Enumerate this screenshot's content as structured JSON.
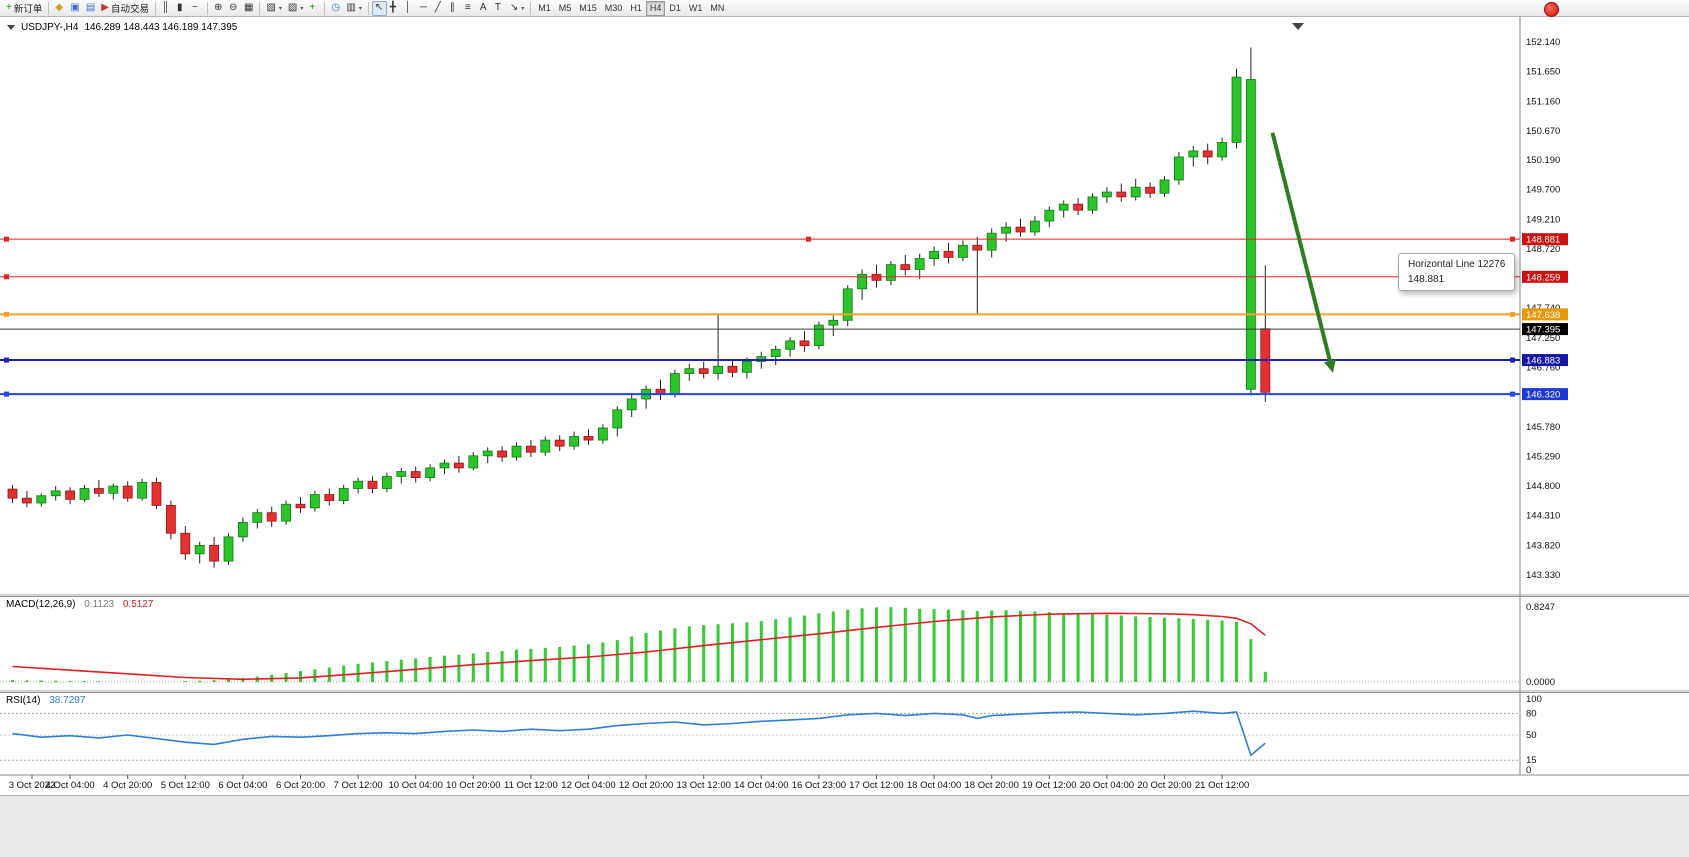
{
  "toolbar": {
    "dropdown_glyph": "▾",
    "groups": [
      [
        {
          "name": "new-order-button",
          "icon": "new-order-icon",
          "glyph": "+",
          "color": "#119911",
          "label": "新订单"
        }
      ],
      [
        {
          "name": "expert-advisors-icon",
          "glyph": "◆",
          "color": "#d4a017"
        },
        {
          "name": "profiles-icon",
          "glyph": "▣",
          "color": "#3b6fd4"
        },
        {
          "name": "data-window-icon",
          "glyph": "▤",
          "color": "#3b6fd4"
        },
        {
          "name": "autotrading-button",
          "icon": "autotrading-icon",
          "glyph": "▶",
          "color": "#cc3333",
          "label": "自动交易"
        }
      ],
      [
        {
          "name": "bar-chart-icon",
          "glyph": "║"
        },
        {
          "name": "candlestick-chart-icon",
          "glyph": "▮"
        },
        {
          "name": "line-chart-icon",
          "glyph": "~"
        }
      ],
      [
        {
          "name": "zoom-in-icon",
          "glyph": "⊕"
        },
        {
          "name": "zoom-out-icon",
          "glyph": "⊖"
        },
        {
          "name": "tile-windows-icon",
          "glyph": "▦"
        }
      ],
      [
        {
          "name": "new-chart-icon",
          "glyph": "▧",
          "dropdown": true
        },
        {
          "name": "chart-profiles-icon",
          "glyph": "▨",
          "dropdown": true
        },
        {
          "name": "add-indicator-icon",
          "glyph": "+",
          "color": "#119911"
        }
      ],
      [
        {
          "name": "auto-scroll-icon",
          "glyph": "◷",
          "color": "#2a6fd4"
        },
        {
          "name": "chart-shift-button",
          "glyph": "▥",
          "dropdown": true
        }
      ],
      [
        {
          "name": "cursor-icon",
          "glyph": "↖",
          "active": true
        },
        {
          "name": "crosshair-icon",
          "glyph": "╋"
        },
        {
          "name": "vertical-line-icon",
          "glyph": "│"
        },
        {
          "name": "horizontal-line-icon",
          "glyph": "─"
        },
        {
          "name": "trendline-icon",
          "glyph": "╱"
        },
        {
          "name": "channel-icon",
          "glyph": "∥"
        },
        {
          "name": "fibonacci-icon",
          "glyph": "≡"
        },
        {
          "name": "text-icon",
          "glyph": "A"
        },
        {
          "name": "text-label-icon",
          "glyph": "T"
        },
        {
          "name": "arrows-icon",
          "glyph": "↘",
          "dropdown": true
        }
      ],
      [
        {
          "name": "tf-m1",
          "tf": "M1"
        },
        {
          "name": "tf-m5",
          "tf": "M5"
        },
        {
          "name": "tf-m15",
          "tf": "M15"
        },
        {
          "name": "tf-m30",
          "tf": "M30"
        },
        {
          "name": "tf-h1",
          "tf": "H1"
        },
        {
          "name": "tf-h4",
          "tf": "H4",
          "active": true
        },
        {
          "name": "tf-d1",
          "tf": "D1"
        },
        {
          "name": "tf-w1",
          "tf": "W1"
        },
        {
          "name": "tf-mn",
          "tf": "MN"
        }
      ]
    ]
  },
  "chart_data": [
    {
      "type": "candlestick",
      "title": "USDJPY-,H4",
      "ohlc_text": "146.289 148.443 146.189 147.395",
      "open": 146.289,
      "high": 148.443,
      "low": 146.189,
      "close": 147.395,
      "bull_color": "#2bc42b",
      "bear_color": "#e33030",
      "price_axis_ticks": [
        152.14,
        151.65,
        151.16,
        150.67,
        150.19,
        149.7,
        149.21,
        148.72,
        148.23,
        147.74,
        147.25,
        146.76,
        146.27,
        145.78,
        145.29,
        144.8,
        144.31,
        143.82,
        143.33
      ],
      "time_labels": [
        "3 Oct 2022",
        "4 Oct 04:00",
        "4 Oct 20:00",
        "5 Oct 12:00",
        "6 Oct 04:00",
        "6 Oct 20:00",
        "7 Oct 12:00",
        "10 Oct 04:00",
        "10 Oct 20:00",
        "11 Oct 12:00",
        "12 Oct 04:00",
        "12 Oct 20:00",
        "13 Oct 12:00",
        "14 Oct 04:00",
        "16 Oct 23:00",
        "17 Oct 12:00",
        "18 Oct 04:00",
        "18 Oct 20:00",
        "19 Oct 12:00",
        "20 Oct 04:00",
        "20 Oct 20:00",
        "21 Oct 12:00"
      ],
      "candles": [
        [
          144.75,
          144.82,
          144.52,
          144.6
        ],
        [
          144.6,
          144.72,
          144.45,
          144.52
        ],
        [
          144.52,
          144.68,
          144.46,
          144.64
        ],
        [
          144.64,
          144.8,
          144.56,
          144.72
        ],
        [
          144.72,
          144.78,
          144.5,
          144.58
        ],
        [
          144.58,
          144.82,
          144.54,
          144.76
        ],
        [
          144.76,
          144.9,
          144.62,
          144.68
        ],
        [
          144.68,
          144.84,
          144.58,
          144.8
        ],
        [
          144.8,
          144.88,
          144.54,
          144.6
        ],
        [
          144.6,
          144.92,
          144.56,
          144.86
        ],
        [
          144.86,
          144.94,
          144.42,
          144.48
        ],
        [
          144.48,
          144.56,
          143.92,
          144.02
        ],
        [
          144.02,
          144.14,
          143.58,
          143.68
        ],
        [
          143.68,
          143.88,
          143.52,
          143.82
        ],
        [
          143.82,
          143.96,
          143.45,
          143.56
        ],
        [
          143.56,
          144.02,
          143.5,
          143.96
        ],
        [
          143.96,
          144.28,
          143.88,
          144.2
        ],
        [
          144.2,
          144.42,
          144.1,
          144.36
        ],
        [
          144.36,
          144.46,
          144.12,
          144.22
        ],
        [
          144.22,
          144.56,
          144.16,
          144.5
        ],
        [
          144.5,
          144.62,
          144.36,
          144.44
        ],
        [
          144.44,
          144.72,
          144.38,
          144.66
        ],
        [
          144.66,
          144.76,
          144.48,
          144.56
        ],
        [
          144.56,
          144.82,
          144.5,
          144.76
        ],
        [
          144.76,
          144.94,
          144.68,
          144.88
        ],
        [
          144.88,
          144.96,
          144.68,
          144.76
        ],
        [
          144.76,
          145.02,
          144.7,
          144.96
        ],
        [
          144.96,
          145.1,
          144.84,
          145.04
        ],
        [
          145.04,
          145.12,
          144.86,
          144.94
        ],
        [
          144.94,
          145.16,
          144.88,
          145.1
        ],
        [
          145.1,
          145.24,
          145.0,
          145.18
        ],
        [
          145.18,
          145.3,
          145.02,
          145.1
        ],
        [
          145.1,
          145.36,
          145.06,
          145.3
        ],
        [
          145.3,
          145.44,
          145.18,
          145.38
        ],
        [
          145.38,
          145.46,
          145.2,
          145.28
        ],
        [
          145.28,
          145.52,
          145.22,
          145.46
        ],
        [
          145.46,
          145.56,
          145.28,
          145.36
        ],
        [
          145.36,
          145.62,
          145.3,
          145.56
        ],
        [
          145.56,
          145.64,
          145.38,
          145.46
        ],
        [
          145.46,
          145.7,
          145.4,
          145.62
        ],
        [
          145.62,
          145.74,
          145.48,
          145.56
        ],
        [
          145.56,
          145.82,
          145.5,
          145.76
        ],
        [
          145.76,
          146.12,
          145.62,
          146.06
        ],
        [
          146.06,
          146.32,
          145.94,
          146.24
        ],
        [
          146.24,
          146.46,
          146.08,
          146.4
        ],
        [
          146.4,
          146.56,
          146.22,
          146.32
        ],
        [
          146.32,
          146.72,
          146.26,
          146.66
        ],
        [
          146.66,
          146.82,
          146.54,
          146.74
        ],
        [
          146.74,
          146.86,
          146.58,
          146.66
        ],
        [
          146.66,
          147.64,
          146.56,
          146.78
        ],
        [
          146.78,
          146.9,
          146.6,
          146.68
        ],
        [
          146.68,
          146.92,
          146.58,
          146.86
        ],
        [
          146.86,
          147.02,
          146.74,
          146.94
        ],
        [
          146.94,
          147.12,
          146.8,
          147.06
        ],
        [
          147.06,
          147.26,
          146.94,
          147.2
        ],
        [
          147.2,
          147.36,
          147.02,
          147.12
        ],
        [
          147.12,
          147.52,
          147.06,
          147.46
        ],
        [
          147.46,
          147.62,
          147.28,
          147.54
        ],
        [
          147.54,
          148.12,
          147.44,
          148.06
        ],
        [
          148.06,
          148.38,
          147.88,
          148.3
        ],
        [
          148.3,
          148.46,
          148.08,
          148.2
        ],
        [
          148.2,
          148.52,
          148.12,
          148.46
        ],
        [
          148.46,
          148.62,
          148.28,
          148.38
        ],
        [
          148.38,
          148.64,
          148.22,
          148.56
        ],
        [
          148.56,
          148.76,
          148.44,
          148.68
        ],
        [
          148.68,
          148.82,
          148.48,
          148.58
        ],
        [
          148.58,
          148.86,
          148.52,
          148.78
        ],
        [
          148.78,
          148.92,
          147.62,
          148.7
        ],
        [
          148.7,
          149.06,
          148.58,
          148.98
        ],
        [
          148.98,
          149.16,
          148.84,
          149.08
        ],
        [
          149.08,
          149.22,
          148.92,
          149.0
        ],
        [
          149.0,
          149.26,
          148.94,
          149.18
        ],
        [
          149.18,
          149.42,
          149.08,
          149.36
        ],
        [
          149.36,
          149.52,
          149.24,
          149.46
        ],
        [
          149.46,
          149.56,
          149.28,
          149.36
        ],
        [
          149.36,
          149.64,
          149.3,
          149.58
        ],
        [
          149.58,
          149.74,
          149.48,
          149.66
        ],
        [
          149.66,
          149.8,
          149.5,
          149.58
        ],
        [
          149.58,
          149.88,
          149.52,
          149.74
        ],
        [
          149.74,
          149.82,
          149.56,
          149.64
        ],
        [
          149.64,
          149.92,
          149.58,
          149.86
        ],
        [
          149.86,
          150.32,
          149.78,
          150.24
        ],
        [
          150.24,
          150.42,
          150.08,
          150.34
        ],
        [
          150.34,
          150.46,
          150.12,
          150.24
        ],
        [
          150.24,
          150.56,
          150.18,
          150.48
        ],
        [
          150.48,
          151.7,
          150.38,
          151.56
        ],
        [
          146.4,
          152.05,
          146.3,
          151.52
        ],
        [
          147.4,
          148.45,
          146.19,
          146.35
        ]
      ],
      "hlines": [
        {
          "price": 148.881,
          "color": "#e02525",
          "width": 1,
          "badge_bg": "#cc1111",
          "label": "148.881",
          "handles": true,
          "selected": true
        },
        {
          "price": 148.259,
          "color": "#e02525",
          "width": 1,
          "badge_bg": "#cc1111",
          "label": "148.259",
          "handles": true
        },
        {
          "price": 147.638,
          "color": "#f2a128",
          "width": 2,
          "badge_bg": "#e8960c",
          "label": "147.638",
          "handles": true
        },
        {
          "price": 147.395,
          "color": "#3c3c3c",
          "width": 1,
          "badge_bg": "#000000",
          "label": "147.395",
          "is_price": true
        },
        {
          "price": 146.883,
          "color": "#2020bb",
          "width": 2,
          "badge_bg": "#1515a8",
          "label": "146.883",
          "handles": true
        },
        {
          "price": 146.32,
          "color": "#2244ee",
          "width": 2,
          "badge_bg": "#1f39d4",
          "label": "146.320",
          "handles": true
        }
      ],
      "arrow": {
        "from": {
          "bar": 87.5,
          "price": 150.64
        },
        "to": {
          "bar": 91.7,
          "price": 146.67
        },
        "color": "#2e7d1e"
      },
      "tooltip": {
        "title": "Horizontal Line 12276",
        "value": "148.881"
      }
    },
    {
      "type": "bar",
      "name": "MACD",
      "label": "MACD(12,26,9)",
      "value_main": "0.1123",
      "value_signal": "0.5127",
      "axis_labels": [
        "0.8247",
        "0.0000"
      ],
      "axis_max": 0.8247,
      "histogram_color": "#32cd32",
      "signal_color": "#e02020",
      "histogram": [
        0.02,
        0.018,
        0.016,
        0.014,
        0.012,
        0.01,
        0.008,
        0.006,
        0.005,
        0.004,
        0.004,
        0.006,
        0.01,
        0.014,
        0.02,
        0.03,
        0.045,
        0.06,
        0.08,
        0.1,
        0.12,
        0.14,
        0.16,
        0.18,
        0.2,
        0.215,
        0.23,
        0.245,
        0.26,
        0.275,
        0.29,
        0.3,
        0.315,
        0.33,
        0.34,
        0.355,
        0.365,
        0.375,
        0.385,
        0.4,
        0.415,
        0.435,
        0.46,
        0.5,
        0.54,
        0.565,
        0.59,
        0.61,
        0.625,
        0.635,
        0.645,
        0.655,
        0.67,
        0.69,
        0.71,
        0.73,
        0.755,
        0.775,
        0.795,
        0.81,
        0.82,
        0.822,
        0.815,
        0.805,
        0.8,
        0.795,
        0.788,
        0.78,
        0.785,
        0.79,
        0.782,
        0.775,
        0.768,
        0.76,
        0.752,
        0.745,
        0.738,
        0.73,
        0.722,
        0.715,
        0.708,
        0.7,
        0.692,
        0.684,
        0.676,
        0.66,
        0.47,
        0.1123
      ],
      "signal_points": [
        [
          0,
          0.17
        ],
        [
          4,
          0.13
        ],
        [
          8,
          0.09
        ],
        [
          12,
          0.05
        ],
        [
          16,
          0.03
        ],
        [
          20,
          0.045
        ],
        [
          24,
          0.09
        ],
        [
          28,
          0.14
        ],
        [
          32,
          0.19
        ],
        [
          36,
          0.235
        ],
        [
          40,
          0.275
        ],
        [
          44,
          0.33
        ],
        [
          48,
          0.4
        ],
        [
          52,
          0.465
        ],
        [
          56,
          0.53
        ],
        [
          60,
          0.6
        ],
        [
          64,
          0.665
        ],
        [
          68,
          0.715
        ],
        [
          72,
          0.745
        ],
        [
          76,
          0.755
        ],
        [
          80,
          0.75
        ],
        [
          82,
          0.74
        ],
        [
          84,
          0.72
        ],
        [
          85,
          0.7
        ],
        [
          86,
          0.64
        ],
        [
          87,
          0.5127
        ]
      ]
    },
    {
      "type": "line",
      "name": "RSI",
      "label": "RSI(14)",
      "value": "38.7297",
      "line_color": "#2f7ed8",
      "levels": [
        80,
        50,
        15
      ],
      "axis_labels": [
        100,
        80,
        50,
        15,
        0
      ],
      "points": [
        [
          0,
          52
        ],
        [
          2,
          47
        ],
        [
          4,
          49
        ],
        [
          6,
          46
        ],
        [
          8,
          50
        ],
        [
          10,
          45
        ],
        [
          12,
          40
        ],
        [
          14,
          37
        ],
        [
          16,
          44
        ],
        [
          18,
          48
        ],
        [
          20,
          47
        ],
        [
          22,
          49
        ],
        [
          24,
          52
        ],
        [
          26,
          53
        ],
        [
          28,
          52
        ],
        [
          30,
          55
        ],
        [
          32,
          57
        ],
        [
          34,
          55
        ],
        [
          36,
          58
        ],
        [
          38,
          56
        ],
        [
          40,
          58
        ],
        [
          42,
          63
        ],
        [
          44,
          66
        ],
        [
          46,
          68
        ],
        [
          48,
          64
        ],
        [
          50,
          66
        ],
        [
          52,
          69
        ],
        [
          54,
          71
        ],
        [
          56,
          73
        ],
        [
          58,
          78
        ],
        [
          60,
          80
        ],
        [
          62,
          77
        ],
        [
          64,
          80
        ],
        [
          66,
          78
        ],
        [
          67,
          73
        ],
        [
          68,
          77
        ],
        [
          70,
          79
        ],
        [
          72,
          81
        ],
        [
          74,
          82
        ],
        [
          76,
          80
        ],
        [
          78,
          78
        ],
        [
          80,
          80
        ],
        [
          82,
          83
        ],
        [
          84,
          80
        ],
        [
          85,
          82
        ],
        [
          86,
          22
        ],
        [
          87,
          38.73
        ]
      ]
    }
  ]
}
